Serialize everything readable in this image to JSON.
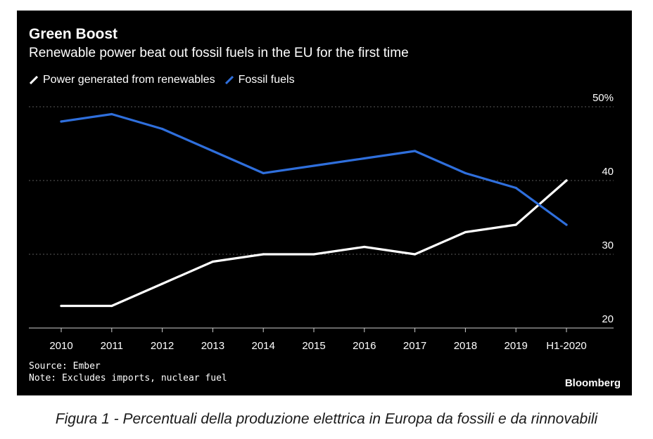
{
  "chart_data": {
    "type": "line",
    "title": "Green Boost",
    "subtitle": "Renewable power beat out fossil fuels in the EU for the first time",
    "categories": [
      "2010",
      "2011",
      "2012",
      "2013",
      "2014",
      "2015",
      "2016",
      "2017",
      "2018",
      "2019",
      "H1-2020"
    ],
    "series": [
      {
        "name": "Power generated from renewables",
        "color": "#ffffff",
        "values": [
          23,
          23,
          26,
          29,
          30,
          30,
          31,
          30,
          33,
          34,
          40
        ]
      },
      {
        "name": "Fossil fuels",
        "color": "#2f6fdc",
        "values": [
          48,
          49,
          47,
          44,
          41,
          42,
          43,
          44,
          41,
          39,
          34
        ]
      }
    ],
    "y_ticks": [
      "50%",
      "40",
      "30",
      "20"
    ],
    "ylim": [
      20,
      50
    ],
    "grid": "horizontal dotted",
    "legend_position": "top-left",
    "source": "Source: Ember",
    "note": "Note: Excludes imports, nuclear fuel",
    "brand": "Bloomberg"
  },
  "caption": "Figura 1 - Percentuali della produzione elettrica in Europa da fossili e da rinnovabili"
}
